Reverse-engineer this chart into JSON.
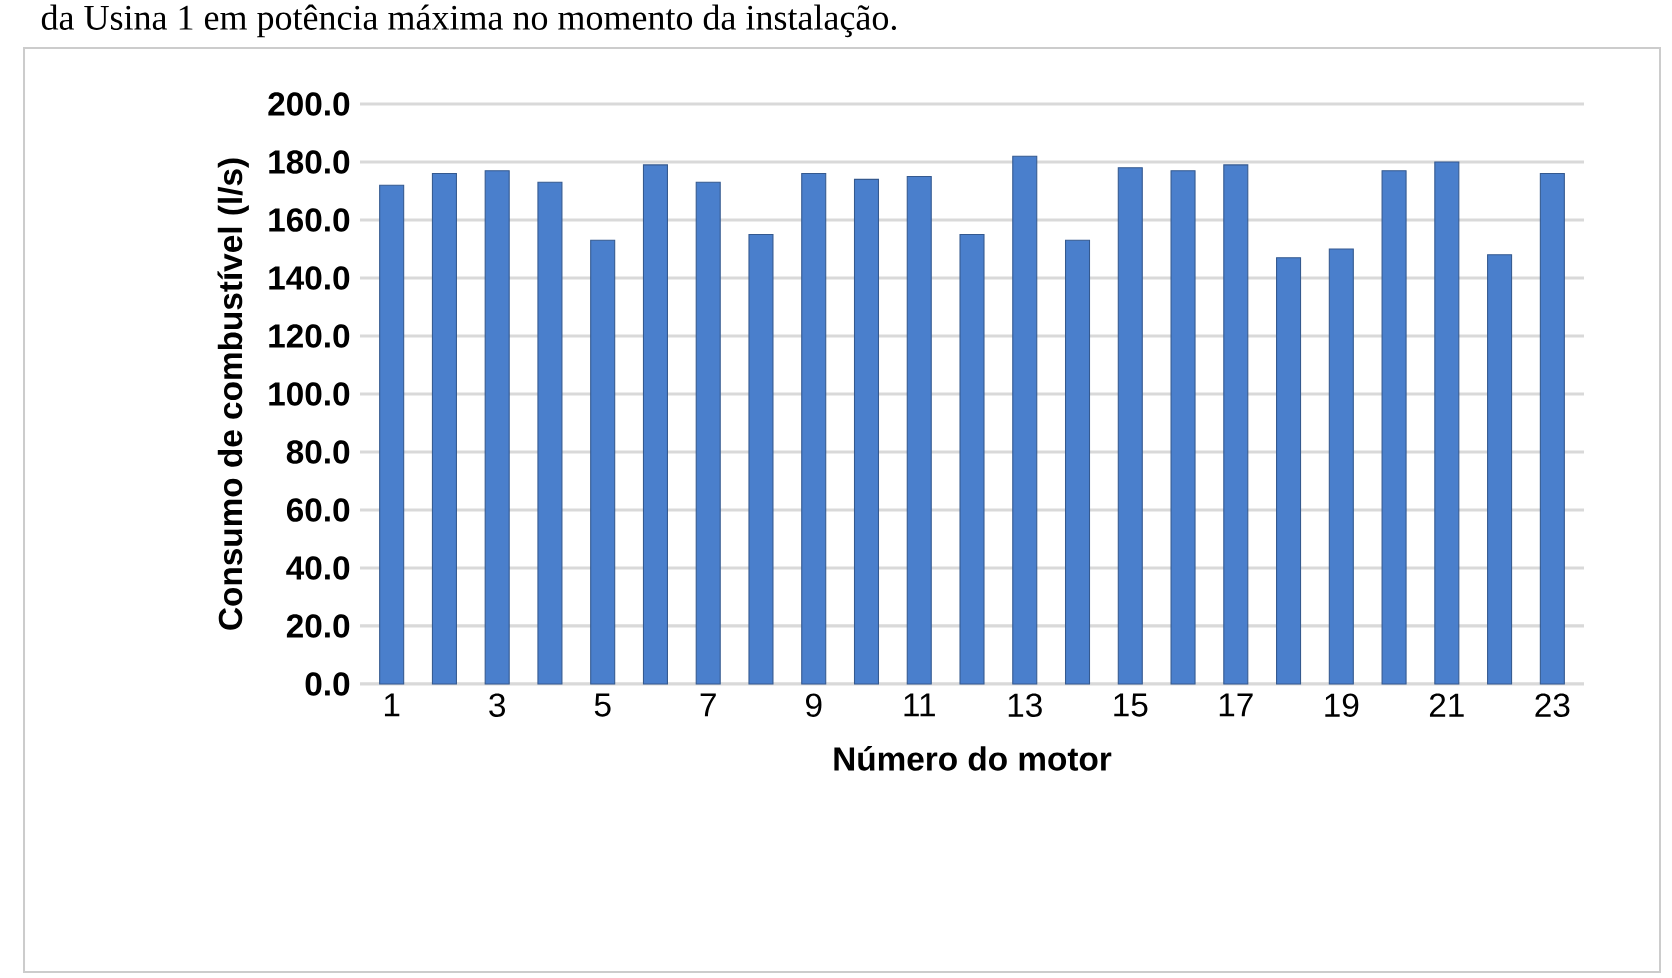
{
  "chart_data": {
    "type": "bar",
    "title": "da Usina 1 em potência máxima no momento da instalação.",
    "xlabel": "Número do motor",
    "ylabel": "Consumo de combustível (l/s)",
    "categories": [
      "1",
      null,
      "3",
      null,
      "5",
      null,
      "7",
      null,
      "9",
      null,
      "11",
      null,
      "13",
      null,
      "15",
      null,
      "17",
      null,
      "19",
      null,
      "21",
      null,
      "23"
    ],
    "values": [
      172,
      176,
      177,
      173,
      153,
      179,
      173,
      155,
      176,
      174,
      175,
      155,
      182,
      153,
      178,
      177,
      179,
      147,
      150,
      177,
      180,
      148,
      176
    ],
    "color": "#4a7fcc",
    "ylim": [
      0,
      200
    ],
    "yticks": [
      {
        "value": 0,
        "label": "0.0"
      },
      {
        "value": 20,
        "label": "20.0"
      },
      {
        "value": 40,
        "label": "40.0"
      },
      {
        "value": 60,
        "label": "60.0"
      },
      {
        "value": 80,
        "label": "80.0"
      },
      {
        "value": 100,
        "label": "100.0"
      },
      {
        "value": 120,
        "label": "120.0"
      },
      {
        "value": 140,
        "label": "140.0"
      },
      {
        "value": 160,
        "label": "160.0"
      },
      {
        "value": 180,
        "label": "180.0"
      },
      {
        "value": 200,
        "label": "200.0"
      }
    ],
    "grid": "y"
  }
}
